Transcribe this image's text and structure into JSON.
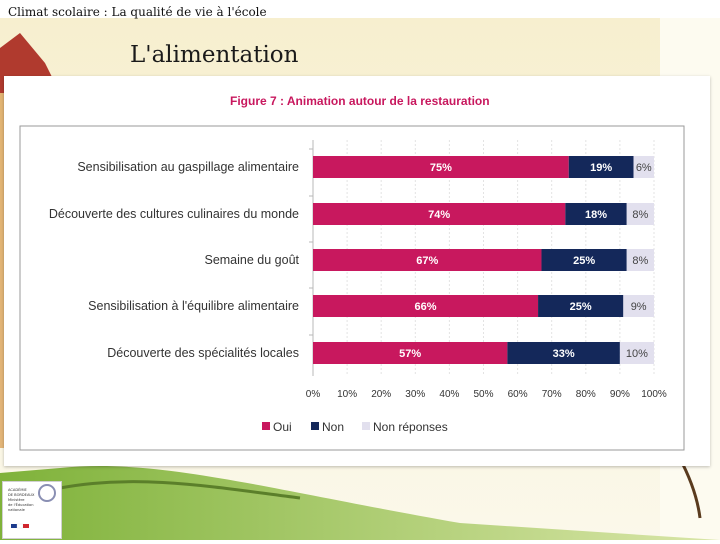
{
  "header": {
    "title": "Climat scolaire : La qualité de vie à l'école"
  },
  "slide": {
    "section_title": "L'alimentation"
  },
  "chart_data": {
    "type": "bar",
    "stacked": true,
    "orientation": "horizontal",
    "title": "Figure 7 : Animation autour de la restauration",
    "categories": [
      "Sensibilisation au gaspillage alimentaire",
      "Découverte des cultures culinaires du monde",
      "Semaine du goût",
      "Sensibilisation à l'équilibre alimentaire",
      "Découverte des spécialités locales"
    ],
    "series": [
      {
        "name": "Oui",
        "color": "#c8185e",
        "values": [
          75,
          74,
          67,
          66,
          57
        ]
      },
      {
        "name": "Non",
        "color": "#14285a",
        "values": [
          19,
          18,
          25,
          25,
          33
        ]
      },
      {
        "name": "Non réponses",
        "color": "#e2e0ee",
        "values": [
          6,
          8,
          8,
          9,
          10
        ]
      }
    ],
    "xlim": [
      0,
      100
    ],
    "xticks": [
      "0%",
      "10%",
      "20%",
      "30%",
      "40%",
      "50%",
      "60%",
      "70%",
      "80%",
      "90%",
      "100%"
    ],
    "value_suffix": "%",
    "legend_position": "bottom"
  },
  "logo": {
    "lines": [
      "ACADÉMIE",
      "DE BORDEAUX",
      "Ministère",
      "de l'Éducation",
      "nationale"
    ]
  }
}
